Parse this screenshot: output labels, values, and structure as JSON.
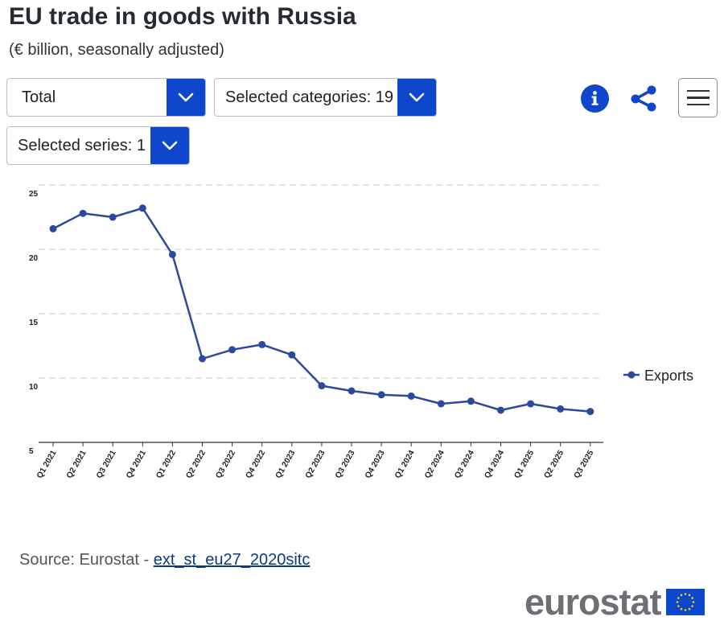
{
  "header": {
    "title": "EU trade in goods with Russia",
    "subtitle": "(€ billion, seasonally adjusted)"
  },
  "controls": {
    "flow_dropdown": "Total",
    "categories_dropdown": "Selected categories: 19",
    "series_dropdown": "Selected series: 1",
    "info_icon": "info-icon",
    "share_icon": "share-icon",
    "menu_icon": "hamburger-menu-icon"
  },
  "colors": {
    "accent": "#0e47cb",
    "series": "#2c4a9d",
    "grid": "#c8c8c8",
    "flag_blue": "#0e47cb",
    "flag_stars": "#f5d400"
  },
  "chart_data": {
    "type": "line",
    "title": "EU trade in goods with Russia",
    "subtitle": "(€ billion, seasonally adjusted)",
    "categories": [
      "Q1 2021",
      "Q2 2021",
      "Q3 2021",
      "Q4 2021",
      "Q1 2022",
      "Q2 2022",
      "Q3 2022",
      "Q4 2022",
      "Q1 2023",
      "Q2 2023",
      "Q3 2023",
      "Q4 2023",
      "Q1 2024",
      "Q2 2024",
      "Q3 2024",
      "Q4 2024",
      "Q1 2025",
      "Q2 2025",
      "Q3 2025"
    ],
    "series": [
      {
        "name": "Exports",
        "values": [
          21.6,
          22.8,
          22.5,
          23.2,
          19.6,
          11.5,
          12.2,
          12.6,
          11.8,
          9.4,
          9.0,
          8.7,
          8.6,
          8.0,
          8.2,
          7.5,
          8.0,
          7.6,
          7.4
        ]
      }
    ],
    "y_ticks": [
      5,
      10,
      15,
      20,
      25
    ],
    "ylim": [
      5,
      25
    ],
    "grid": true,
    "legend": "right"
  },
  "footer": {
    "source_prefix": "Source: Eurostat - ",
    "source_link": "ext_st_eu27_2020sitc",
    "logo_text": "eurostat"
  }
}
